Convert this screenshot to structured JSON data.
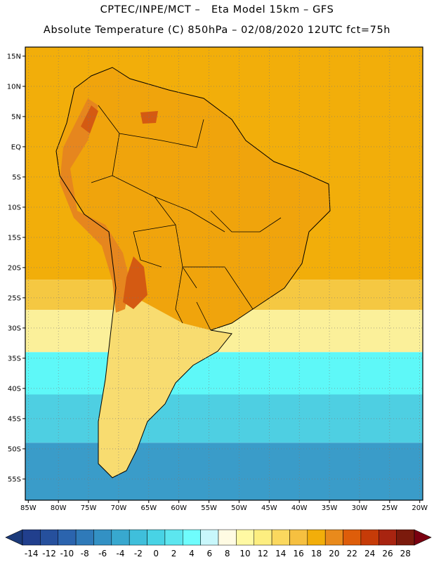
{
  "title_line1": "CPTEC/INPE/MCT –   Eta Model 15km – GFS",
  "title_line2": "Absolute Temperature (C) 850hPa – 02/08/2020 12UTC fct=75h",
  "map": {
    "lon_range": [
      -85.5,
      -19.5
    ],
    "lat_range": [
      -58.5,
      16.5
    ],
    "lat_ticks": [
      {
        "value": 15,
        "label": "15N"
      },
      {
        "value": 10,
        "label": "10N"
      },
      {
        "value": 5,
        "label": "5N"
      },
      {
        "value": 0,
        "label": "EQ"
      },
      {
        "value": -5,
        "label": "5S"
      },
      {
        "value": -10,
        "label": "10S"
      },
      {
        "value": -15,
        "label": "15S"
      },
      {
        "value": -20,
        "label": "20S"
      },
      {
        "value": -25,
        "label": "25S"
      },
      {
        "value": -30,
        "label": "30S"
      },
      {
        "value": -35,
        "label": "35S"
      },
      {
        "value": -40,
        "label": "40S"
      },
      {
        "value": -45,
        "label": "45S"
      },
      {
        "value": -50,
        "label": "50S"
      },
      {
        "value": -55,
        "label": "55S"
      }
    ],
    "lon_ticks": [
      {
        "value": -85,
        "label": "85W"
      },
      {
        "value": -80,
        "label": "80W"
      },
      {
        "value": -75,
        "label": "75W"
      },
      {
        "value": -70,
        "label": "70W"
      },
      {
        "value": -65,
        "label": "65W"
      },
      {
        "value": -60,
        "label": "60W"
      },
      {
        "value": -55,
        "label": "55W"
      },
      {
        "value": -50,
        "label": "50W"
      },
      {
        "value": -45,
        "label": "45W"
      },
      {
        "value": -40,
        "label": "40W"
      },
      {
        "value": -35,
        "label": "35W"
      },
      {
        "value": -30,
        "label": "30W"
      },
      {
        "value": -25,
        "label": "25W"
      },
      {
        "value": -20,
        "label": "20W"
      }
    ],
    "grid": "dotted every 5 degrees",
    "temperature_bands": [
      {
        "lat_north": 16.5,
        "lat_south": -22,
        "class": "16-18 C",
        "color": "#f2ae0a"
      },
      {
        "lat_north": -22,
        "lat_south": -27,
        "class": "12-16 C",
        "color": "#f5c842"
      },
      {
        "lat_north": -27,
        "lat_south": -34,
        "class": "8-10 C",
        "color": "#fbf09a"
      },
      {
        "lat_north": -34,
        "lat_south": -41,
        "class": "2-4 C",
        "color": "#5ef8f8"
      },
      {
        "lat_north": -41,
        "lat_south": -49,
        "class": "-2-0 C",
        "color": "#4ecfe2"
      },
      {
        "lat_north": -49,
        "lat_south": -58.5,
        "class": "-6 to -4 C",
        "color": "#3a9cc9"
      }
    ],
    "land_colors": {
      "tropical": "#f0a40c",
      "andes_warm": "#e6861e",
      "andes_hot": "#d45a12",
      "south_land": "#f8dc70"
    }
  },
  "colorbar": {
    "labels": [
      "-14",
      "-12",
      "-10",
      "-8",
      "-6",
      "-4",
      "-2",
      "0",
      "2",
      "4",
      "6",
      "8",
      "10",
      "12",
      "14",
      "16",
      "18",
      "20",
      "22",
      "24",
      "26",
      "28"
    ],
    "under_color": "#1b3a7a",
    "over_color": "#7a0010",
    "colors": [
      "#213f8d",
      "#26509d",
      "#2b64ae",
      "#2f7ab9",
      "#3391c4",
      "#38a8cf",
      "#3fbfdb",
      "#48d3e5",
      "#5ce6ef",
      "#6ffdfd",
      "#c8f7fb",
      "#fffbe3",
      "#fff9a3",
      "#fdee80",
      "#fbd85e",
      "#f6c040",
      "#f2ae0a",
      "#e98a1c",
      "#de5d0a",
      "#c63b08",
      "#a82410",
      "#7b1a0c"
    ]
  }
}
